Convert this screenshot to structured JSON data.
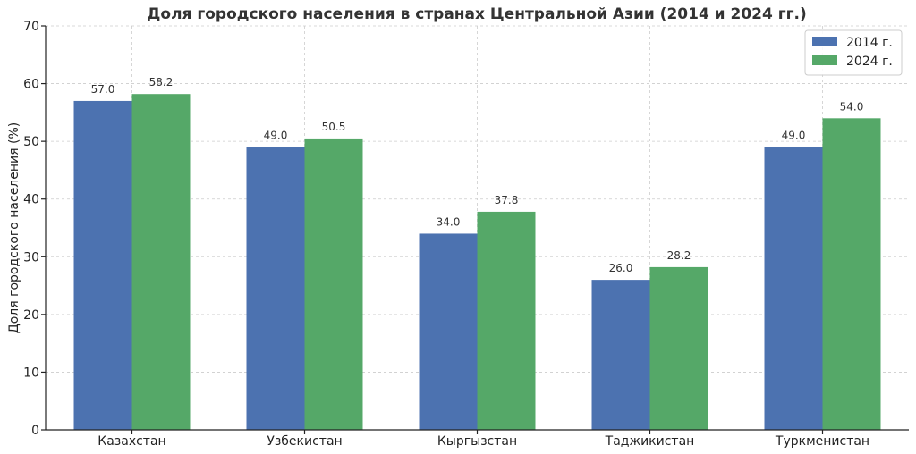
{
  "chart_data": {
    "type": "bar",
    "title": "Доля городского населения в странах Центральной Азии (2014 и 2024 гг.)",
    "xlabel": "",
    "ylabel": "Доля городского населения (%)",
    "ylim": [
      0,
      70
    ],
    "yticks": [
      0,
      10,
      20,
      30,
      40,
      50,
      60,
      70
    ],
    "categories": [
      "Казахстан",
      "Узбекистан",
      "Кыргызстан",
      "Таджикистан",
      "Туркменистан"
    ],
    "series": [
      {
        "name": "2014 г.",
        "color": "#4c72b0",
        "values": [
          57.0,
          49.0,
          34.0,
          26.0,
          49.0
        ]
      },
      {
        "name": "2024 г.",
        "color": "#55a868",
        "values": [
          58.2,
          50.5,
          37.8,
          28.2,
          54.0
        ]
      }
    ],
    "grid": true,
    "legend_position": "top-right"
  }
}
